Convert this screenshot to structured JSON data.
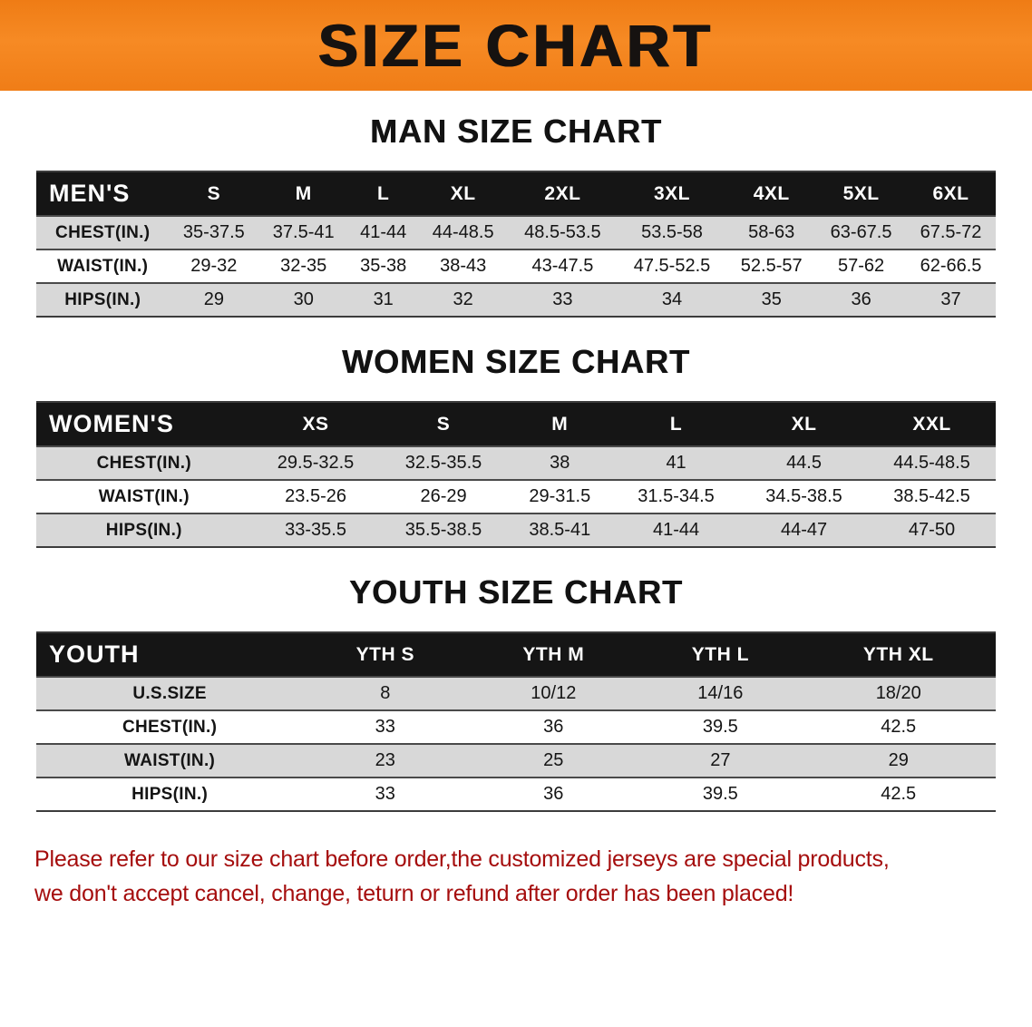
{
  "banner": {
    "title": "SIZE CHART",
    "bg_color": "#f5831f",
    "text_color": "#161210"
  },
  "sections": [
    {
      "heading": "MAN SIZE CHART",
      "table": {
        "header_label": "MEN'S",
        "columns": [
          "S",
          "M",
          "L",
          "XL",
          "2XL",
          "3XL",
          "4XL",
          "5XL",
          "6XL"
        ],
        "rows": [
          {
            "label": "CHEST(IN.)",
            "values": [
              "35-37.5",
              "37.5-41",
              "41-44",
              "44-48.5",
              "48.5-53.5",
              "53.5-58",
              "58-63",
              "63-67.5",
              "67.5-72"
            ]
          },
          {
            "label": "WAIST(IN.)",
            "values": [
              "29-32",
              "32-35",
              "35-38",
              "38-43",
              "43-47.5",
              "47.5-52.5",
              "52.5-57",
              "57-62",
              "62-66.5"
            ]
          },
          {
            "label": "HIPS(IN.)",
            "values": [
              "29",
              "30",
              "31",
              "32",
              "33",
              "34",
              "35",
              "36",
              "37"
            ]
          }
        ]
      }
    },
    {
      "heading": "WOMEN SIZE CHART",
      "table": {
        "header_label": "WOMEN'S",
        "columns": [
          "XS",
          "S",
          "M",
          "L",
          "XL",
          "XXL"
        ],
        "rows": [
          {
            "label": "CHEST(IN.)",
            "values": [
              "29.5-32.5",
              "32.5-35.5",
              "38",
              "41",
              "44.5",
              "44.5-48.5"
            ]
          },
          {
            "label": "WAIST(IN.)",
            "values": [
              "23.5-26",
              "26-29",
              "29-31.5",
              "31.5-34.5",
              "34.5-38.5",
              "38.5-42.5"
            ]
          },
          {
            "label": "HIPS(IN.)",
            "values": [
              "33-35.5",
              "35.5-38.5",
              "38.5-41",
              "41-44",
              "44-47",
              "47-50"
            ]
          }
        ]
      }
    },
    {
      "heading": "YOUTH SIZE CHART",
      "table": {
        "header_label": "YOUTH",
        "columns": [
          "YTH S",
          "YTH M",
          "YTH L",
          "YTH XL"
        ],
        "rows": [
          {
            "label": "U.S.SIZE",
            "values": [
              "8",
              "10/12",
              "14/16",
              "18/20"
            ]
          },
          {
            "label": "CHEST(IN.)",
            "values": [
              "33",
              "36",
              "39.5",
              "42.5"
            ]
          },
          {
            "label": "WAIST(IN.)",
            "values": [
              "23",
              "25",
              "27",
              "29"
            ]
          },
          {
            "label": "HIPS(IN.)",
            "values": [
              "33",
              "36",
              "39.5",
              "42.5"
            ]
          }
        ]
      }
    }
  ],
  "footer": {
    "line1": "Please refer to our size chart before order,the customized jerseys are special products,",
    "line2": "we don't accept cancel, change, teturn or refund after order has been placed!"
  }
}
